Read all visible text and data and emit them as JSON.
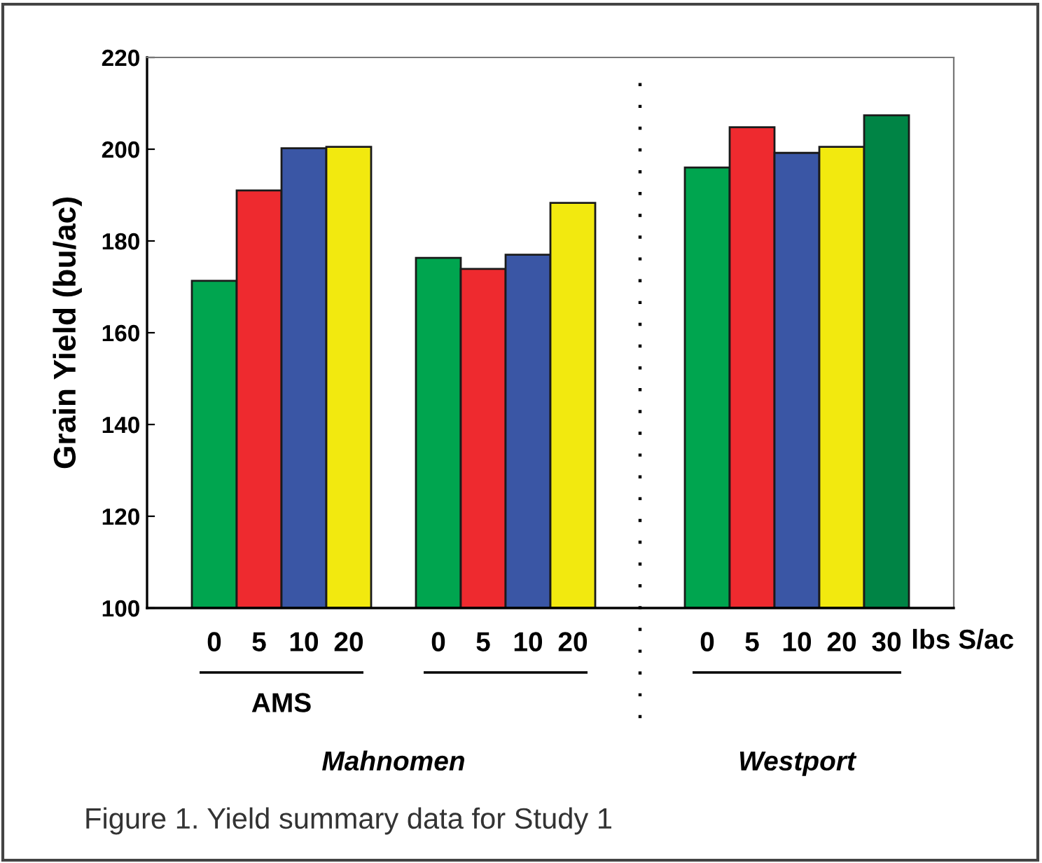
{
  "chart_data": {
    "type": "bar",
    "ylabel": "Grain Yield (bu/ac)",
    "xlabel": "lbs S/ac",
    "categories": [
      null,
      "0",
      "5",
      "10",
      "20",
      null,
      "0",
      "5",
      "10",
      "20",
      null,
      null,
      "0",
      "5",
      "10",
      "20",
      "30",
      null
    ],
    "values": [
      null,
      171.3,
      191,
      200.2,
      200.5,
      null,
      176.3,
      173.9,
      177,
      188.3,
      null,
      null,
      196,
      204.8,
      199.2,
      200.5,
      207.4,
      null
    ],
    "colors": [
      null,
      "#00a54f",
      "#ee2a2f",
      "#3a56a5",
      "#f2e90f",
      null,
      "#00a54f",
      "#ee2a2f",
      "#3a56a5",
      "#f2e90f",
      null,
      null,
      "#00a54f",
      "#ee2a2f",
      "#3a56a5",
      "#f2e90f",
      "#008445",
      null
    ],
    "ylim": [
      100,
      220
    ],
    "yticks": [
      100,
      120,
      140,
      160,
      180,
      200,
      220
    ],
    "annotations": [
      "AMS",
      "Mahnomen",
      "Westport",
      "Figure 1. Yield summary data for Study 1"
    ],
    "grid": false
  }
}
